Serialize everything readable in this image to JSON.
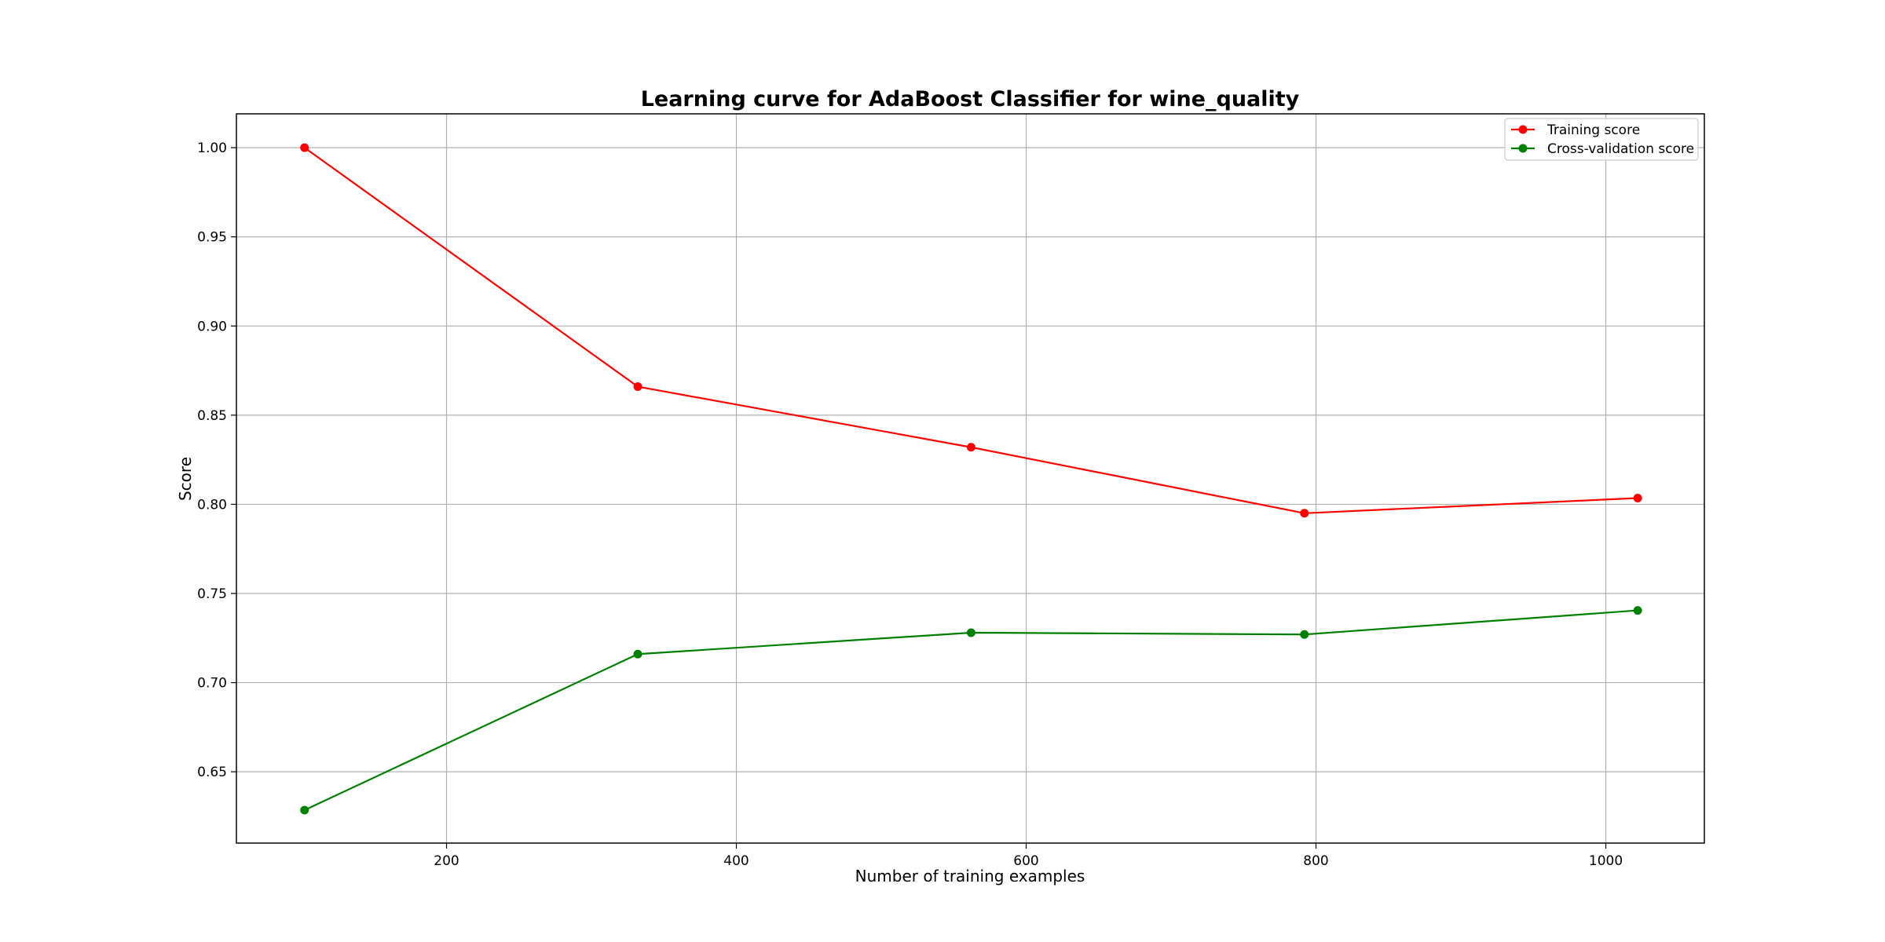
{
  "chart_data": {
    "type": "line",
    "title": "Learning curve for AdaBoost Classifier for wine_quality",
    "xlabel": "Number of training examples",
    "ylabel": "Score",
    "xlim": [
      55,
      1068
    ],
    "ylim": [
      0.61,
      1.019
    ],
    "x_ticks": [
      200,
      400,
      600,
      800,
      1000
    ],
    "y_ticks": [
      0.65,
      0.7,
      0.75,
      0.8,
      0.85,
      0.9,
      0.95,
      1.0
    ],
    "x_tick_labels": [
      "200",
      "400",
      "600",
      "800",
      "1000"
    ],
    "y_tick_labels": [
      "0.65",
      "0.70",
      "0.75",
      "0.80",
      "0.85",
      "0.90",
      "0.95",
      "1.00"
    ],
    "grid": true,
    "legend_position": "top-right",
    "x": [
      102,
      332,
      562,
      792,
      1022
    ],
    "series": [
      {
        "name": "Training score",
        "color": "#ff0000",
        "marker": "circle",
        "values": [
          1.0,
          0.866,
          0.832,
          0.795,
          0.8035
        ]
      },
      {
        "name": "Cross-validation score",
        "color": "#008000",
        "marker": "circle",
        "values": [
          0.6285,
          0.716,
          0.728,
          0.727,
          0.7405
        ]
      }
    ]
  }
}
